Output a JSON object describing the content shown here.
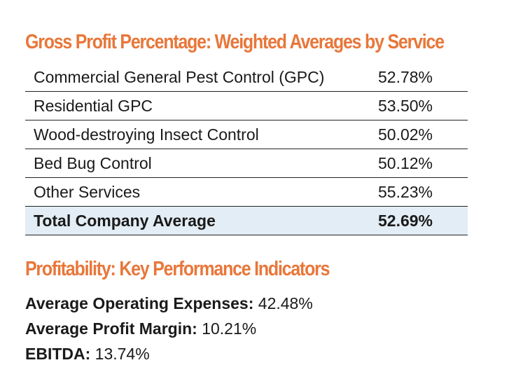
{
  "chart_data": {
    "type": "table",
    "title": "Gross Profit Percentage: Weighted Averages by Service",
    "rows": [
      {
        "label": "Commercial General Pest Control (GPC)",
        "value": "52.78%"
      },
      {
        "label": "Residential GPC",
        "value": "53.50%"
      },
      {
        "label": "Wood-destroying Insect Control",
        "value": "50.02%"
      },
      {
        "label": "Bed Bug Control",
        "value": "50.12%"
      },
      {
        "label": "Other Services",
        "value": "55.23%"
      }
    ],
    "total": {
      "label": "Total Company Average",
      "value": "52.69%"
    }
  },
  "kpi_section": {
    "title": "Profitability: Key Performance Indicators",
    "items": [
      {
        "label": "Average Operating Expenses:",
        "value": "42.48%"
      },
      {
        "label": "Average Profit Margin:",
        "value": "10.21%"
      },
      {
        "label": "EBITDA:",
        "value": "13.74%"
      }
    ]
  },
  "colors": {
    "heading": "#e8773a",
    "total_row_bg": "#e3edf5",
    "text": "#1a1a1a"
  }
}
